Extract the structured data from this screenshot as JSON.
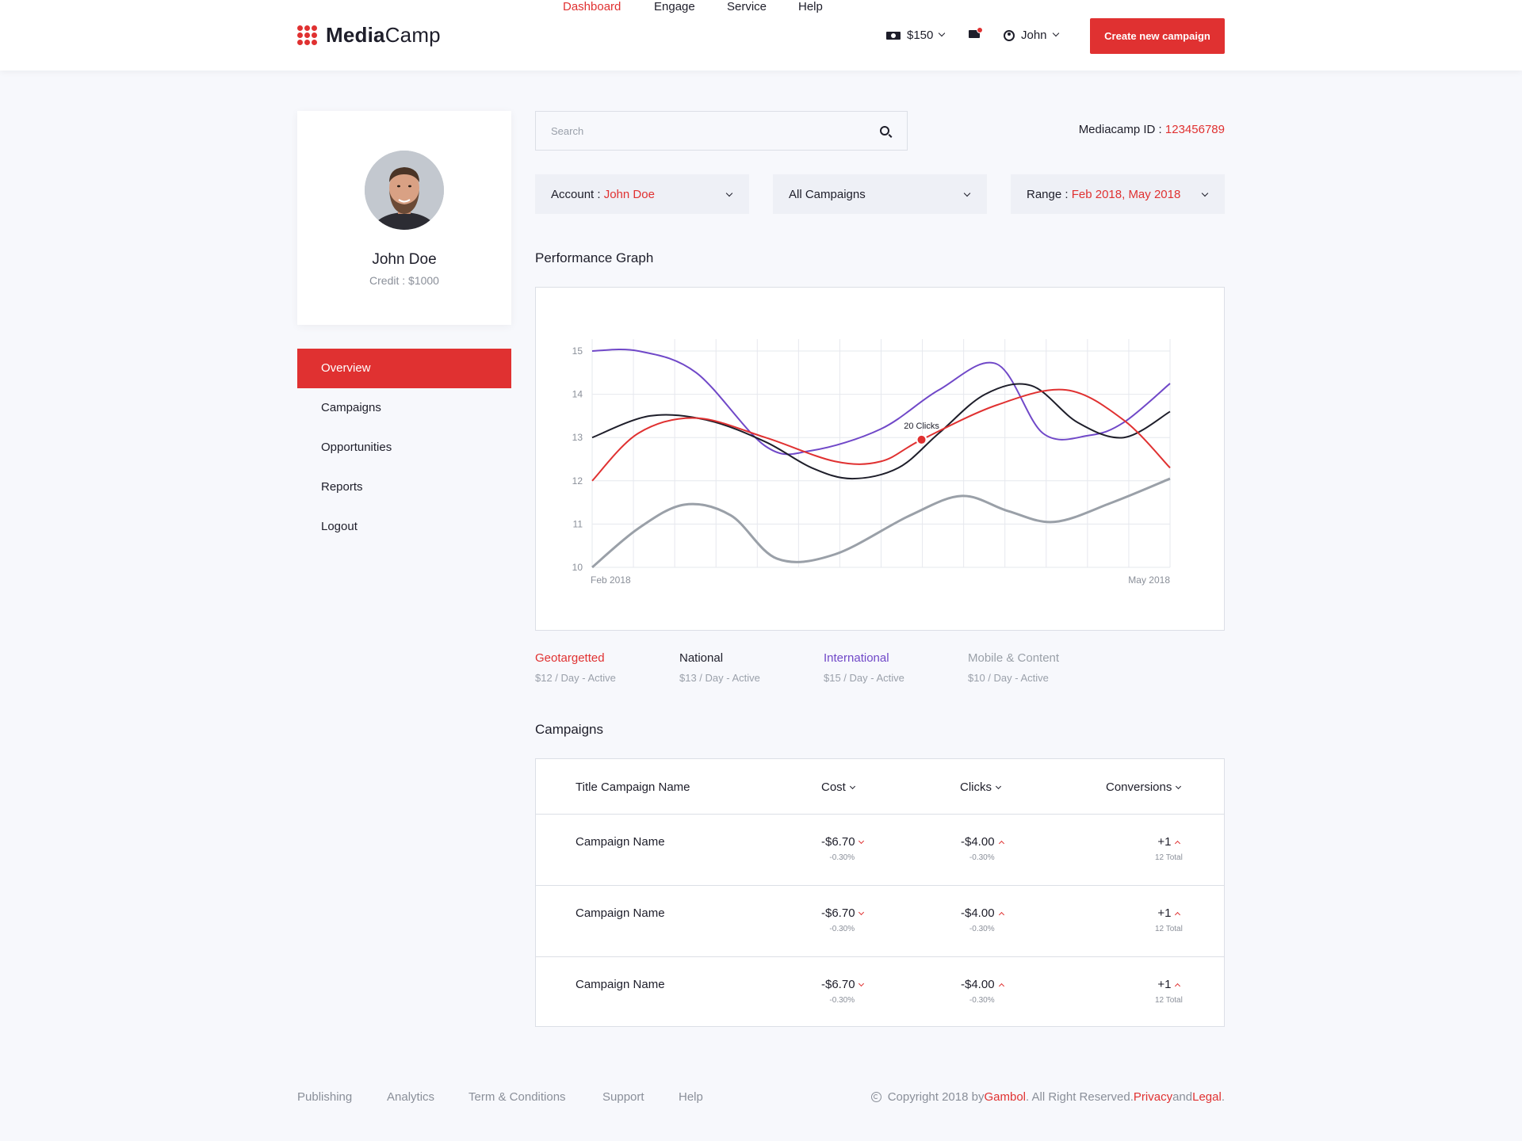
{
  "brand": {
    "bold": "Media",
    "light": "Camp"
  },
  "nav": [
    {
      "label": "Dashboard",
      "active": true
    },
    {
      "label": "Engage",
      "active": false
    },
    {
      "label": "Service",
      "active": false
    },
    {
      "label": "Help",
      "active": false
    }
  ],
  "header": {
    "balance": "$150",
    "user": "John",
    "cta": "Create new campaign"
  },
  "profile": {
    "name": "John Doe",
    "credit": "Credit : $1000"
  },
  "sidebar": {
    "items": [
      {
        "label": "Overview",
        "active": true
      },
      {
        "label": "Campaigns",
        "active": false
      },
      {
        "label": "Opportunities",
        "active": false
      },
      {
        "label": "Reports",
        "active": false
      },
      {
        "label": "Logout",
        "active": false
      }
    ]
  },
  "search": {
    "placeholder": "Search"
  },
  "mediacamp_id": {
    "label": "Mediacamp ID : ",
    "value": "123456789"
  },
  "filters": {
    "account": {
      "label": "Account : ",
      "value": "John Doe"
    },
    "campaigns": {
      "label": "All Campaigns"
    },
    "range": {
      "label": "Range : ",
      "value": "Feb 2018, May 2018"
    }
  },
  "performance": {
    "title": "Performance Graph"
  },
  "chart_data": {
    "type": "line",
    "x_labels": [
      "Feb 2018",
      "May 2018"
    ],
    "yticks": [
      10,
      11,
      12,
      13,
      14,
      15
    ],
    "ylim": [
      10,
      15
    ],
    "grid": true,
    "annotation": {
      "text": "20 Clicks",
      "series": "Geotargetted",
      "x": 0.57,
      "y": 12.95
    },
    "series": [
      {
        "name": "Geotargetted",
        "color": "#e03131",
        "points": [
          [
            0,
            12
          ],
          [
            0.08,
            13.1
          ],
          [
            0.18,
            13.45
          ],
          [
            0.3,
            13
          ],
          [
            0.42,
            12.45
          ],
          [
            0.5,
            12.45
          ],
          [
            0.57,
            12.95
          ],
          [
            0.7,
            13.75
          ],
          [
            0.82,
            14.1
          ],
          [
            0.92,
            13.4
          ],
          [
            1,
            12.3
          ]
        ]
      },
      {
        "name": "National",
        "color": "#1e1e2a",
        "points": [
          [
            0,
            13
          ],
          [
            0.1,
            13.5
          ],
          [
            0.2,
            13.4
          ],
          [
            0.3,
            12.9
          ],
          [
            0.38,
            12.3
          ],
          [
            0.45,
            12.05
          ],
          [
            0.53,
            12.3
          ],
          [
            0.6,
            13.1
          ],
          [
            0.68,
            14
          ],
          [
            0.76,
            14.2
          ],
          [
            0.84,
            13.35
          ],
          [
            0.92,
            13
          ],
          [
            1,
            13.6
          ]
        ]
      },
      {
        "name": "International",
        "color": "#7048c8",
        "points": [
          [
            0,
            15
          ],
          [
            0.08,
            15
          ],
          [
            0.18,
            14.5
          ],
          [
            0.3,
            12.8
          ],
          [
            0.38,
            12.7
          ],
          [
            0.5,
            13.2
          ],
          [
            0.6,
            14.1
          ],
          [
            0.7,
            14.7
          ],
          [
            0.78,
            13.1
          ],
          [
            0.86,
            13.05
          ],
          [
            0.92,
            13.35
          ],
          [
            1,
            14.25
          ]
        ]
      },
      {
        "name": "Mobile & Content",
        "color": "#9aa0a8",
        "points": [
          [
            0,
            10
          ],
          [
            0.08,
            10.9
          ],
          [
            0.16,
            11.45
          ],
          [
            0.24,
            11.2
          ],
          [
            0.32,
            10.2
          ],
          [
            0.42,
            10.3
          ],
          [
            0.55,
            11.2
          ],
          [
            0.64,
            11.65
          ],
          [
            0.72,
            11.3
          ],
          [
            0.8,
            11.05
          ],
          [
            0.9,
            11.5
          ],
          [
            1,
            12.05
          ]
        ]
      }
    ]
  },
  "legend": [
    {
      "name": "Geotargetted",
      "detail": "$12 / Day - Active",
      "color": "#e03131"
    },
    {
      "name": "National",
      "detail": "$13 / Day - Active",
      "color": "#1e1e2a"
    },
    {
      "name": "International",
      "detail": "$15 / Day - Active",
      "color": "#7048c8"
    },
    {
      "name": "Mobile & Content",
      "detail": "$10 / Day - Active",
      "color": "#9aa0a8"
    }
  ],
  "campaigns": {
    "title": "Campaigns",
    "headers": {
      "name": "Title Campaign Name",
      "cost": "Cost",
      "clicks": "Clicks",
      "conversions": "Conversions"
    },
    "rows": [
      {
        "name": "Campaign Name",
        "cost": "-$6.70",
        "cost_change": "-0.30%",
        "clicks": "-$4.00",
        "clicks_change": "-0.30%",
        "conversions": "+1",
        "conversions_total": "12 Total"
      },
      {
        "name": "Campaign Name",
        "cost": "-$6.70",
        "cost_change": "-0.30%",
        "clicks": "-$4.00",
        "clicks_change": "-0.30%",
        "conversions": "+1",
        "conversions_total": "12 Total"
      },
      {
        "name": "Campaign Name",
        "cost": "-$6.70",
        "cost_change": "-0.30%",
        "clicks": "-$4.00",
        "clicks_change": "-0.30%",
        "conversions": "+1",
        "conversions_total": "12 Total"
      }
    ]
  },
  "footer": {
    "links": [
      "Publishing",
      "Analytics",
      "Term & Conditions",
      "Support",
      "Help"
    ],
    "copyright_prefix": "Copyright 2018 by ",
    "company": "Gambol",
    "rights": ". All Right Reserved. ",
    "privacy": "Privacy",
    "and": " and ",
    "legal": "Legal",
    "end": "."
  },
  "colors": {
    "accent": "#e03131",
    "background": "#f7f8fc",
    "text": "#1e1e2a",
    "muted": "#8a8f99"
  }
}
